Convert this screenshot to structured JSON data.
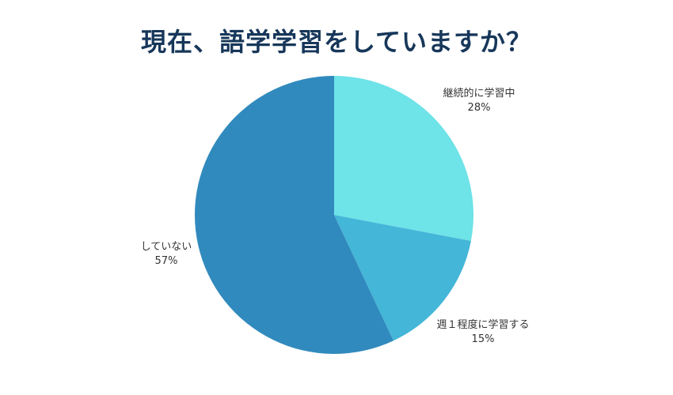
{
  "title": "現在、語学学習をしていますか？",
  "labels": {
    "continuous": {
      "name": "継続的に学習中",
      "pct": "28%"
    },
    "weekly": {
      "name": "週１程度に学習する",
      "pct": "15%"
    },
    "none": {
      "name": "していない",
      "pct": "57%"
    }
  },
  "colors": {
    "continuous": "#6ee3e8",
    "weekly": "#44b6d8",
    "none": "#318abd",
    "title": "#17375a"
  },
  "chart_data": {
    "type": "pie",
    "title": "現在、語学学習をしていますか？",
    "categories": [
      "継続的に学習中",
      "週１程度に学習する",
      "していない"
    ],
    "values": [
      28,
      15,
      57
    ],
    "unit": "%",
    "start_angle": "12 o'clock, clockwise",
    "legend": "none (direct labels)"
  }
}
